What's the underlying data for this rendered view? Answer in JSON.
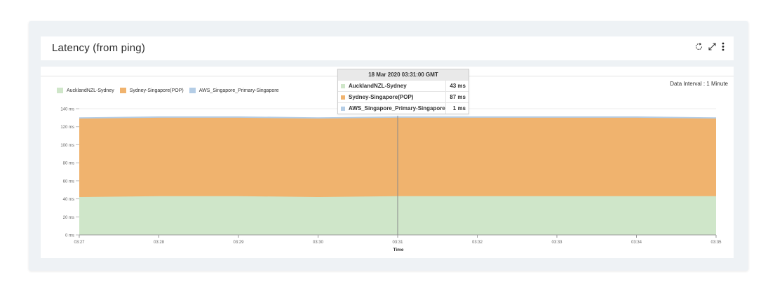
{
  "panel": {
    "title": "Latency (from ping)",
    "data_interval_label": "Data Interval",
    "data_interval_value": ": 1 Minute"
  },
  "icons": {
    "refresh": "refresh-icon",
    "expand": "expand-icon",
    "more": "more-vertical-icon"
  },
  "tooltip": {
    "timestamp": "18 Mar 2020 03:31:00 GMT",
    "rows": [
      {
        "name": "AucklandNZL-Sydney",
        "value": "43 ms",
        "color": "#cfe6c9"
      },
      {
        "name": "Sydney-Singapore(POP)",
        "value": "87 ms",
        "color": "#f0b36e"
      },
      {
        "name": "AWS_Singapore_Primary-Singapore",
        "value": "1 ms",
        "color": "#b4cde6"
      }
    ]
  },
  "chart_data": {
    "type": "area",
    "stacked": true,
    "x": [
      "03:27",
      "03:28",
      "03:29",
      "03:30",
      "03:31",
      "03:32",
      "03:33",
      "03:34",
      "03:35"
    ],
    "xlabel": "Time",
    "ylabel": "",
    "ylim": [
      0,
      140
    ],
    "y_ticks": [
      "0 ms",
      "20 ms",
      "40 ms",
      "60 ms",
      "80 ms",
      "100 ms",
      "120 ms",
      "140 ms"
    ],
    "y_tick_values": [
      0,
      20,
      40,
      60,
      80,
      100,
      120,
      140
    ],
    "grid": "horizontal",
    "legend": "top-left",
    "hover_x": "03:31",
    "series": [
      {
        "name": "AucklandNZL-Sydney",
        "color": "#cfe6c9",
        "values": [
          42,
          43,
          43,
          42,
          43,
          43,
          43,
          43,
          43
        ]
      },
      {
        "name": "Sydney-Singapore(POP)",
        "color": "#f0b36e",
        "values": [
          87,
          87,
          87,
          87,
          87,
          87,
          87,
          87,
          86
        ]
      },
      {
        "name": "AWS_Singapore_Primary-Singapore",
        "color": "#b4cde6",
        "values": [
          1,
          1,
          1,
          1,
          1,
          1,
          1,
          1,
          1
        ]
      }
    ]
  }
}
